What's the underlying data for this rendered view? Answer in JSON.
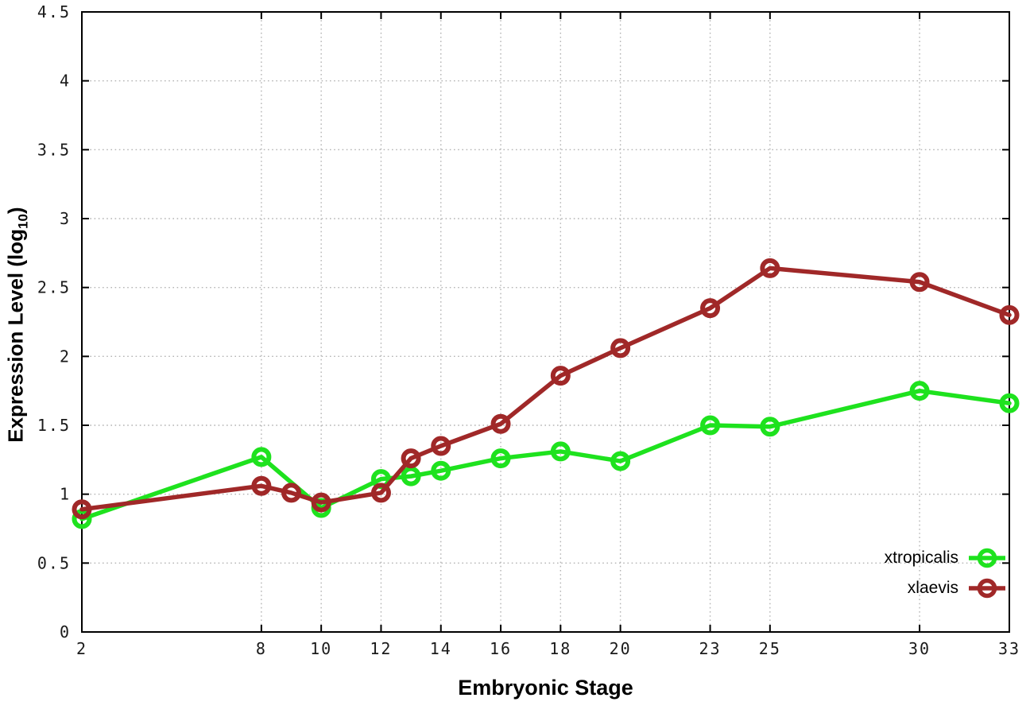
{
  "chart_data": {
    "type": "line",
    "title": "",
    "xlabel": "Embryonic Stage",
    "ylabel": "Expression Level (log10)",
    "ylabel_main": "Expression Level (log",
    "ylabel_sub": "10",
    "ylabel_paren": ")",
    "xlim": [
      2,
      33
    ],
    "ylim": [
      0,
      4.5
    ],
    "x_tick_values": [
      2,
      8,
      10,
      12,
      14,
      16,
      18,
      20,
      23,
      25,
      30,
      33
    ],
    "x_tick_labels": [
      "2",
      "8",
      "10",
      "12",
      "14",
      "16",
      "18",
      "20",
      "23",
      "25",
      "30",
      "33"
    ],
    "y_tick_values": [
      0,
      0.5,
      1,
      1.5,
      2,
      2.5,
      3,
      3.5,
      4,
      4.5
    ],
    "y_tick_labels": [
      "0",
      "0.5",
      "1",
      "1.5",
      "2",
      "2.5",
      "3",
      "3.5",
      "4",
      "4.5"
    ],
    "grid": true,
    "grid_style": "dotted",
    "legend_position": "inside-bottom-right",
    "colors": {
      "xtropicalis": "#1ee21e",
      "xlaevis": "#a02828",
      "grid": "#b4b4b4",
      "axis": "#000000"
    },
    "series": [
      {
        "name": "xtropicalis",
        "color": "#1ee21e",
        "x": [
          2,
          8,
          10,
          12,
          13,
          14,
          16,
          18,
          20,
          23,
          25,
          30,
          33
        ],
        "y": [
          0.82,
          1.27,
          0.9,
          1.11,
          1.13,
          1.17,
          1.26,
          1.31,
          1.24,
          1.5,
          1.49,
          1.75,
          1.66
        ]
      },
      {
        "name": "xlaevis",
        "color": "#a02828",
        "x": [
          2,
          8,
          9,
          10,
          12,
          13,
          14,
          16,
          18,
          20,
          23,
          25,
          30,
          33
        ],
        "y": [
          0.89,
          1.06,
          1.01,
          0.94,
          1.01,
          1.26,
          1.35,
          1.51,
          1.86,
          2.06,
          2.35,
          2.64,
          2.54,
          2.3
        ]
      }
    ]
  }
}
